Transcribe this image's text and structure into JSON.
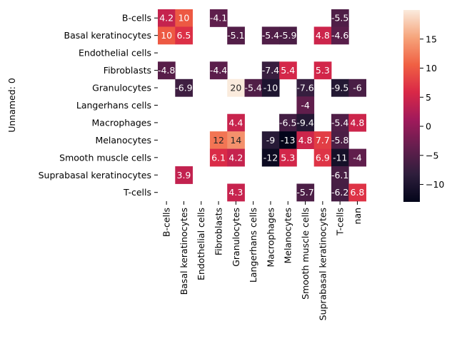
{
  "chart_data": {
    "type": "heatmap",
    "title": "",
    "xlabel": "",
    "ylabel": "Unnamed: 0",
    "rows": [
      "B-cells",
      "Basal keratinocytes",
      "Endothelial cells",
      "Fibroblasts",
      "Granulocytes",
      "Langerhans cells",
      "Macrophages",
      "Melanocytes",
      "Smooth muscle cells",
      "Suprabasal keratinocytes",
      "T-cells"
    ],
    "columns": [
      "B-cells",
      "Basal keratinocytes",
      "Endothelial cells",
      "Fibroblasts",
      "Granulocytes",
      "Langerhans cells",
      "Macrophages",
      "Melanocytes",
      "Smooth muscle cells",
      "Suprabasal keratinocytes",
      "T-cells",
      "nan"
    ],
    "values": [
      [
        4.2,
        10,
        null,
        -4.1,
        null,
        null,
        null,
        null,
        null,
        null,
        -5.5,
        null
      ],
      [
        10,
        6.5,
        null,
        null,
        -5.1,
        null,
        -5.4,
        -5.9,
        null,
        4.8,
        -4.6,
        null
      ],
      [
        null,
        null,
        null,
        null,
        null,
        null,
        null,
        null,
        null,
        null,
        null,
        null
      ],
      [
        -4.8,
        null,
        null,
        -4.4,
        null,
        null,
        -7.4,
        5.4,
        null,
        5.3,
        null,
        null
      ],
      [
        null,
        -6.9,
        null,
        null,
        20,
        -5.4,
        -10,
        null,
        -7.6,
        null,
        -9.5,
        -6
      ],
      [
        null,
        null,
        null,
        null,
        null,
        null,
        null,
        null,
        -4,
        null,
        null,
        null
      ],
      [
        null,
        null,
        null,
        null,
        4.4,
        null,
        null,
        -6.5,
        -9.4,
        null,
        -5.4,
        4.8
      ],
      [
        null,
        null,
        null,
        12,
        14,
        null,
        -9,
        -13,
        4.8,
        7.7,
        -5.8,
        null
      ],
      [
        null,
        null,
        null,
        6.1,
        4.2,
        null,
        -12,
        5.3,
        null,
        6.9,
        -11,
        -4
      ],
      [
        null,
        3.9,
        null,
        null,
        null,
        null,
        null,
        null,
        null,
        null,
        -6.1,
        null
      ],
      [
        null,
        null,
        null,
        null,
        4.3,
        null,
        null,
        null,
        -5.7,
        null,
        -6.2,
        6.8
      ]
    ],
    "labels": [
      [
        "4.2",
        "10",
        "",
        "-4.1",
        "",
        "",
        "",
        "",
        "",
        "",
        "-5.5",
        ""
      ],
      [
        "10",
        "6.5",
        "",
        "",
        "-5.1",
        "",
        "-5.4",
        "-5.9",
        "",
        "4.8",
        "-4.6",
        ""
      ],
      [
        "",
        "",
        "",
        "",
        "",
        "",
        "",
        "",
        "",
        "",
        "",
        ""
      ],
      [
        "-4.8",
        "",
        "",
        "-4.4",
        "",
        "",
        "-7.4",
        "5.4",
        "",
        "5.3",
        "",
        ""
      ],
      [
        "",
        "-6.9",
        "",
        "",
        "20",
        "-5.4",
        "-10",
        "",
        "-7.6",
        "",
        "-9.5",
        "-6"
      ],
      [
        "",
        "",
        "",
        "",
        "",
        "",
        "",
        "",
        "-4",
        "",
        "",
        ""
      ],
      [
        "",
        "",
        "",
        "",
        "4.4",
        "",
        "",
        "-6.5",
        "-9.4",
        "",
        "-5.4",
        "4.8"
      ],
      [
        "",
        "",
        "",
        "12",
        "14",
        "",
        "-9",
        "-13",
        "4.8",
        "7.7",
        "-5.8",
        ""
      ],
      [
        "",
        "",
        "",
        "6.1",
        "4.2",
        "",
        "-12",
        "5.3",
        "",
        "6.9",
        "-11",
        "-4"
      ],
      [
        "",
        "3.9",
        "",
        "",
        "",
        "",
        "",
        "",
        "",
        "",
        "-6.1",
        ""
      ],
      [
        "",
        "",
        "",
        "",
        "4.3",
        "",
        "",
        "",
        "-5.7",
        "",
        "-6.2",
        "6.8"
      ]
    ],
    "colorbar": {
      "vmin": -13,
      "vmax": 20,
      "ticks": [
        -10,
        -5,
        0,
        5,
        10,
        15
      ],
      "tick_labels": [
        "−10",
        "−5",
        "0",
        "5",
        "10",
        "15"
      ],
      "colormap": "rocket",
      "colormap_stops": [
        "#03051a",
        "#2e1e3c",
        "#651e4e",
        "#a11a5b",
        "#d92847",
        "#f06043",
        "#f6a47b",
        "#faebdd"
      ]
    },
    "grid": false,
    "legend": "colorbar-right"
  }
}
